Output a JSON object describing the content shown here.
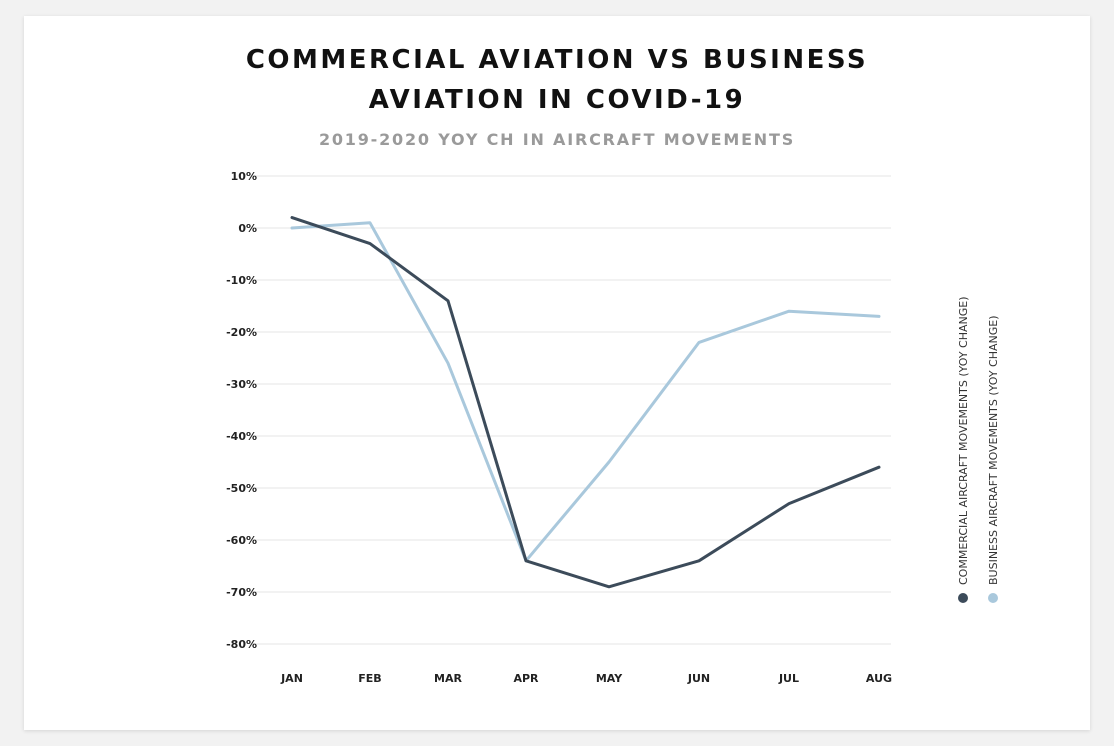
{
  "chart_data": {
    "type": "line",
    "title": "COMMERCIAL AVIATION VS BUSINESS AVIATION IN COVID-19",
    "subtitle": "2019-2020 YOY CH IN AIRCRAFT MOVEMENTS",
    "categories": [
      "JAN",
      "FEB",
      "MAR",
      "APR",
      "MAY",
      "JUN",
      "JUL",
      "AUG"
    ],
    "y_ticks": [
      "10%",
      "0%",
      "-10%",
      "-20%",
      "-30%",
      "-40%",
      "-50%",
      "-60%",
      "-70%",
      "-80%"
    ],
    "ylim": [
      -80,
      10
    ],
    "grid": true,
    "legend_position": "right",
    "series": [
      {
        "name": "COMMERCIAL AIRCRAFT MOVEMENTS (YOY CHANGE)",
        "color": "#3c4b5a",
        "values": [
          2,
          -3,
          -14,
          -64,
          -69,
          -64,
          -53,
          -46
        ]
      },
      {
        "name": "BUSINESS AIRCRAFT MOVEMENTS (YOY CHANGE)",
        "color": "#a9c8dc",
        "values": [
          0,
          1,
          -26,
          -64,
          -45,
          -22,
          -16,
          -17
        ]
      }
    ]
  }
}
